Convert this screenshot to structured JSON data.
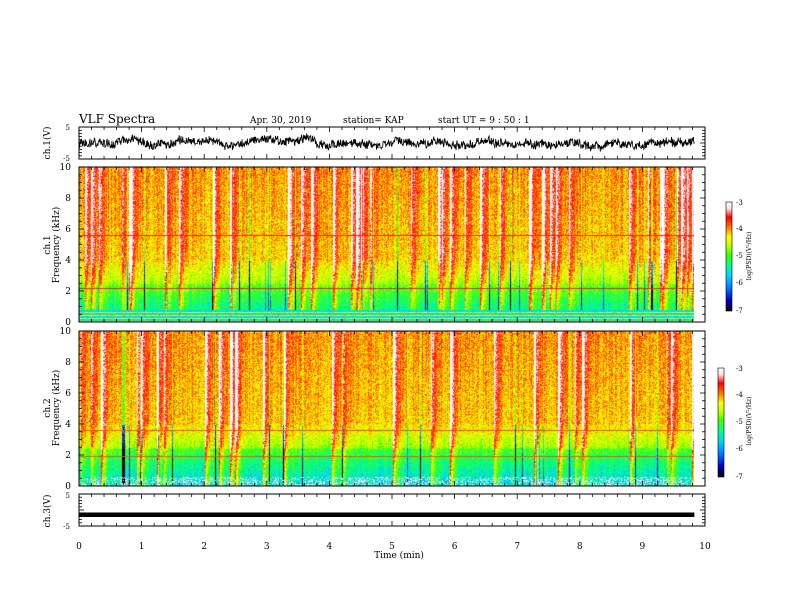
{
  "header": {
    "title": "VLF Spectra",
    "date": "Apr. 30, 2019",
    "station": "station= KAP",
    "start_ut": "start  UT =   9 : 50 : 1"
  },
  "chart_data": [
    {
      "type": "line",
      "panel": "ch1-waveform",
      "ylabel": "ch.1(V)",
      "ytick_labels": [
        "5",
        "-5"
      ],
      "ylim": [
        -5,
        5
      ],
      "xlim": [
        0,
        10
      ],
      "x_end_of_data": 9.83,
      "color": "#000000",
      "description_only": false
    },
    {
      "type": "heatmap",
      "panel": "ch1-spectrogram",
      "ylabel_line1": "ch.1",
      "ylabel_line2": "Frequency (kHz)",
      "ytick_labels": [
        "0",
        "2",
        "4",
        "6",
        "8",
        "10"
      ],
      "ylim": [
        0,
        10
      ],
      "xlim": [
        0,
        10
      ],
      "x_end_of_data": 9.83,
      "colorbar": {
        "label": "log(PSD)(V²/Hz)",
        "ticks": [
          "-3",
          "-4",
          "-5",
          "-6",
          "-7"
        ],
        "range": [
          -7,
          -3
        ]
      }
    },
    {
      "type": "heatmap",
      "panel": "ch2-spectrogram",
      "ylabel_line1": "ch.2",
      "ylabel_line2": "Frequency (kHz)",
      "ytick_labels": [
        "0",
        "2",
        "4",
        "6",
        "8",
        "10"
      ],
      "ylim": [
        0,
        10
      ],
      "xlim": [
        0,
        10
      ],
      "x_end_of_data": 9.83,
      "colorbar": {
        "label": "log(PSD)(V²/Hz)",
        "ticks": [
          "-3",
          "-4",
          "-5",
          "-6",
          "-7"
        ],
        "range": [
          -7,
          -3
        ]
      }
    },
    {
      "type": "line",
      "panel": "ch3-waveform",
      "ylabel": "ch.3(V)",
      "ytick_labels": [
        "5",
        "-5"
      ],
      "ylim": [
        -5,
        5
      ],
      "xlim": [
        0,
        10
      ],
      "x_end_of_data": 9.83,
      "constant_value": -1.5,
      "color": "#000000",
      "xlabel": "Time (min)",
      "xtick_labels": [
        "0",
        "1",
        "2",
        "3",
        "4",
        "5",
        "6",
        "7",
        "8",
        "9",
        "10"
      ]
    }
  ],
  "colors": {
    "colormap": [
      "#000000",
      "#0000cc",
      "#0080ff",
      "#00d0ff",
      "#00ff90",
      "#40ff00",
      "#c0ff00",
      "#ffff00",
      "#ff8000",
      "#ff0000",
      "#ffe0e0",
      "#ffffff"
    ]
  }
}
